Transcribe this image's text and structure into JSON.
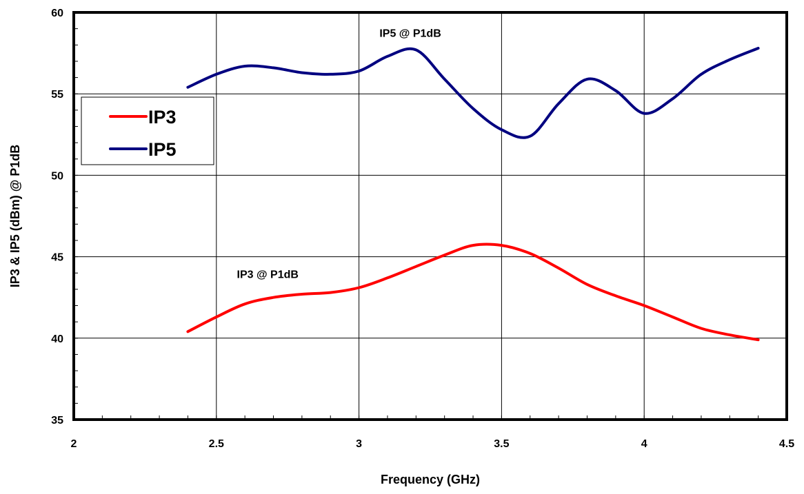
{
  "chart_data": {
    "type": "line",
    "xlabel": "Frequency (GHz)",
    "ylabel": "IP3 & IP5 (dBm) @ P1dB",
    "xlim": [
      2,
      4.5
    ],
    "ylim": [
      35,
      60
    ],
    "xticks": [
      2,
      2.5,
      3,
      3.5,
      4,
      4.5
    ],
    "xtick_labels": [
      "2",
      "2.5",
      "3",
      "3.5",
      "4",
      "4.5"
    ],
    "yticks": [
      35,
      40,
      45,
      50,
      55,
      60
    ],
    "ytick_labels": [
      "35",
      "40",
      "45",
      "50",
      "55",
      "60"
    ],
    "grid": true,
    "legend_position": "left",
    "series": [
      {
        "name": "IP3",
        "color": "#ff0000",
        "x": [
          2.4,
          2.5,
          2.6,
          2.7,
          2.8,
          2.9,
          3.0,
          3.1,
          3.2,
          3.3,
          3.4,
          3.5,
          3.6,
          3.7,
          3.8,
          3.9,
          4.0,
          4.1,
          4.2,
          4.3,
          4.4
        ],
        "y": [
          40.4,
          41.3,
          42.1,
          42.5,
          42.7,
          42.8,
          43.1,
          43.7,
          44.4,
          45.1,
          45.7,
          45.7,
          45.2,
          44.3,
          43.3,
          42.6,
          42.0,
          41.3,
          40.6,
          40.2,
          39.9
        ]
      },
      {
        "name": "IP5",
        "color": "#000080",
        "x": [
          2.4,
          2.5,
          2.6,
          2.7,
          2.8,
          2.9,
          3.0,
          3.1,
          3.2,
          3.3,
          3.4,
          3.5,
          3.6,
          3.7,
          3.8,
          3.9,
          4.0,
          4.1,
          4.2,
          4.3,
          4.4
        ],
        "y": [
          55.4,
          56.2,
          56.7,
          56.6,
          56.3,
          56.2,
          56.4,
          57.3,
          57.7,
          55.9,
          54.1,
          52.8,
          52.4,
          54.4,
          55.9,
          55.2,
          53.8,
          54.7,
          56.2,
          57.1,
          57.8
        ]
      }
    ],
    "annotations": [
      {
        "text": "IP5 @ P1dB",
        "x": 3.18,
        "y": 58.5
      },
      {
        "text": "IP3 @ P1dB",
        "x": 2.68,
        "y": 43.7
      }
    ]
  }
}
